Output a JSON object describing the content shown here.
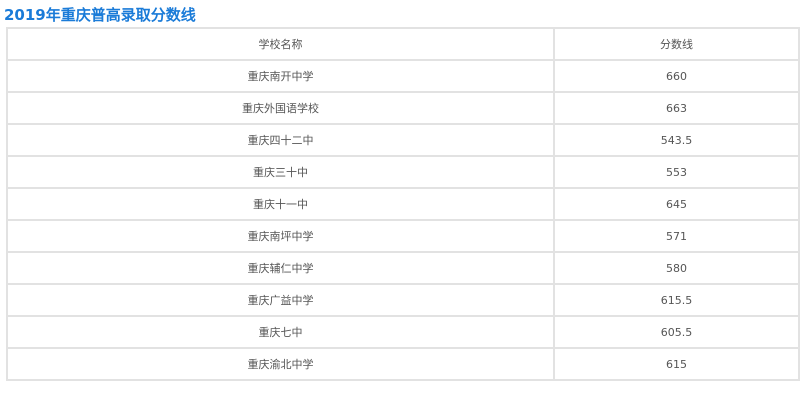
{
  "title": "2019年重庆普高录取分数线",
  "table": {
    "headers": [
      "学校名称",
      "分数线"
    ],
    "rows": [
      [
        "重庆南开中学",
        "660"
      ],
      [
        "重庆外国语学校",
        "663"
      ],
      [
        "重庆四十二中",
        "543.5"
      ],
      [
        "重庆三十中",
        "553"
      ],
      [
        "重庆十一中",
        "645"
      ],
      [
        "重庆南坪中学",
        "571"
      ],
      [
        "重庆辅仁中学",
        "580"
      ],
      [
        "重庆广益中学",
        "615.5"
      ],
      [
        "重庆七中",
        "605.5"
      ],
      [
        "重庆渝北中学",
        "615"
      ]
    ]
  },
  "colors": {
    "title": "#1a7bd8",
    "border": "#e2e2e2",
    "text": "#555555"
  }
}
